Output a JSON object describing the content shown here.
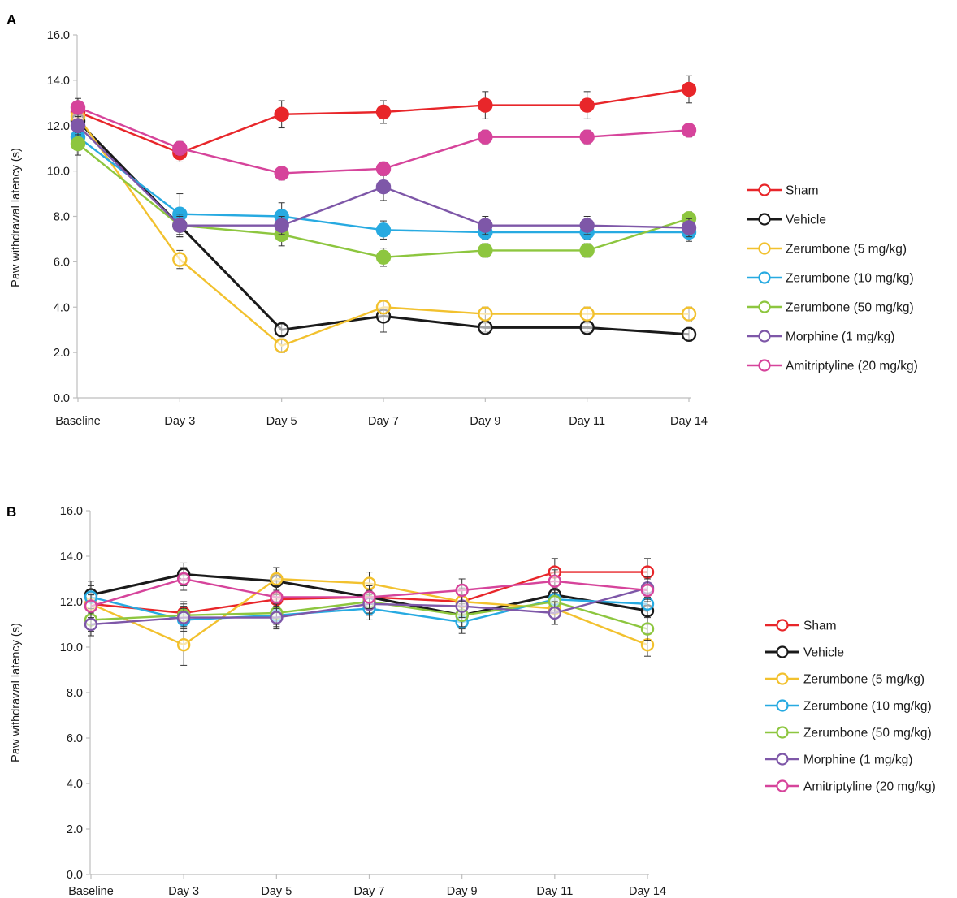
{
  "chart_data": [
    {
      "panel": "A",
      "type": "line",
      "ylabel": "Paw withdrawal latency (s)",
      "ylim": [
        0,
        16
      ],
      "yticks": [
        "0.0",
        "2.0",
        "4.0",
        "6.0",
        "8.0",
        "10.0",
        "12.0",
        "14.0",
        "16.0"
      ],
      "categories": [
        "Baseline",
        "Day 3",
        "Day 5",
        "Day 7",
        "Day 9",
        "Day 11",
        "Day 14"
      ],
      "legend_position": "right",
      "series": [
        {
          "name": "Sham",
          "color": "#e8262a",
          "values": [
            12.6,
            10.8,
            12.5,
            12.6,
            12.9,
            12.9,
            13.6
          ],
          "errors": [
            0.4,
            0.4,
            0.6,
            0.5,
            0.6,
            0.6,
            0.6
          ]
        },
        {
          "name": "Vehicle",
          "color": "#1a1a1a",
          "values": [
            12.2,
            7.6,
            3.0,
            3.6,
            3.1,
            3.1,
            2.8
          ],
          "errors": [
            0.5,
            0.5,
            0.3,
            0.7,
            0.2,
            0.2,
            0.3
          ]
        },
        {
          "name": "Zerumbone (5 mg/kg)",
          "color": "#f2c12e",
          "values": [
            12.4,
            6.1,
            2.3,
            4.0,
            3.7,
            3.7,
            3.7
          ],
          "errors": [
            0.4,
            0.4,
            0.3,
            0.3,
            0.3,
            0.3,
            0.3
          ]
        },
        {
          "name": "Zerumbone (10 mg/kg)",
          "color": "#27aae1",
          "values": [
            11.5,
            8.1,
            8.0,
            7.4,
            7.3,
            7.3,
            7.3
          ],
          "errors": [
            0.4,
            0.9,
            0.6,
            0.4,
            0.3,
            0.3,
            0.4
          ]
        },
        {
          "name": "Zerumbone (50 mg/kg)",
          "color": "#8dc63f",
          "values": [
            11.2,
            7.6,
            7.2,
            6.2,
            6.5,
            6.5,
            7.9
          ],
          "errors": [
            0.5,
            0.5,
            0.5,
            0.4,
            0.3,
            0.3,
            0.3
          ]
        },
        {
          "name": "Morphine (1 mg/kg)",
          "color": "#7e57a8",
          "values": [
            12.0,
            7.6,
            7.6,
            9.3,
            7.6,
            7.6,
            7.5
          ],
          "errors": [
            0.4,
            0.4,
            0.4,
            0.6,
            0.4,
            0.4,
            0.4
          ]
        },
        {
          "name": "Amitriptyline (20 mg/kg)",
          "color": "#d6449b",
          "values": [
            12.8,
            11.0,
            9.9,
            10.1,
            11.5,
            11.5,
            11.8
          ],
          "errors": [
            0.4,
            0.3,
            0.3,
            0.3,
            0.3,
            0.3,
            0.3
          ]
        }
      ]
    },
    {
      "panel": "B",
      "type": "line",
      "ylabel": "Paw withdrawal latency (s)",
      "ylim": [
        0,
        16
      ],
      "yticks": [
        "0.0",
        "2.0",
        "4.0",
        "6.0",
        "8.0",
        "10.0",
        "12.0",
        "14.0",
        "16.0"
      ],
      "categories": [
        "Baseline",
        "Day 3",
        "Day 5",
        "Day 7",
        "Day 9",
        "Day 11",
        "Day 14"
      ],
      "legend_position": "right",
      "series": [
        {
          "name": "Sham",
          "color": "#e8262a",
          "values": [
            11.9,
            11.5,
            12.1,
            12.2,
            12.0,
            13.3,
            13.3
          ],
          "errors": [
            0.5,
            0.5,
            0.6,
            0.6,
            0.5,
            0.6,
            0.6
          ]
        },
        {
          "name": "Vehicle",
          "color": "#1a1a1a",
          "values": [
            12.3,
            13.2,
            12.9,
            12.2,
            11.4,
            12.3,
            11.6
          ],
          "errors": [
            0.6,
            0.5,
            0.6,
            0.6,
            0.6,
            0.6,
            0.6
          ]
        },
        {
          "name": "Zerumbone (5 mg/kg)",
          "color": "#f2c12e",
          "values": [
            11.9,
            10.1,
            13.0,
            12.8,
            12.0,
            11.7,
            10.1
          ],
          "errors": [
            0.5,
            0.9,
            0.5,
            0.5,
            0.6,
            0.7,
            0.5
          ]
        },
        {
          "name": "Zerumbone (10 mg/kg)",
          "color": "#27aae1",
          "values": [
            12.2,
            11.2,
            11.4,
            11.7,
            11.1,
            12.1,
            11.9
          ],
          "errors": [
            0.5,
            0.5,
            0.5,
            0.5,
            0.5,
            0.5,
            0.5
          ]
        },
        {
          "name": "Zerumbone (50 mg/kg)",
          "color": "#8dc63f",
          "values": [
            11.2,
            11.4,
            11.5,
            12.0,
            11.4,
            12.0,
            10.8
          ],
          "errors": [
            0.5,
            0.5,
            0.5,
            0.5,
            0.5,
            0.5,
            0.5
          ]
        },
        {
          "name": "Morphine (1 mg/kg)",
          "color": "#7e57a8",
          "values": [
            11.0,
            11.3,
            11.3,
            11.9,
            11.8,
            11.5,
            12.6
          ],
          "errors": [
            0.5,
            0.5,
            0.5,
            0.5,
            0.5,
            0.5,
            0.5
          ]
        },
        {
          "name": "Amitriptyline (20 mg/kg)",
          "color": "#d6449b",
          "values": [
            11.8,
            13.0,
            12.2,
            12.2,
            12.5,
            12.9,
            12.5
          ],
          "errors": [
            0.5,
            0.5,
            0.5,
            0.5,
            0.5,
            0.5,
            0.5
          ]
        }
      ]
    }
  ]
}
